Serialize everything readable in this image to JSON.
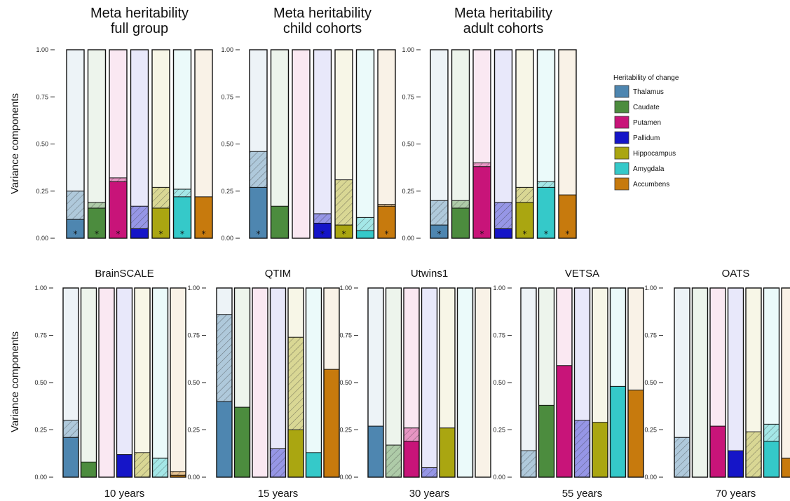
{
  "chart_data": {
    "type": "bar",
    "stacked": true,
    "ylim": [
      0,
      1
    ],
    "yticks": [
      "0.00",
      "0.25",
      "0.50",
      "0.75",
      "1.00"
    ],
    "ylabel": "Variance components",
    "legend": {
      "title": "Heritability of change",
      "placement": "right",
      "items": [
        "Thalamus",
        "Caudate",
        "Putamen",
        "Pallidum",
        "Hippocampus",
        "Amygdala",
        "Accumbens"
      ]
    },
    "colors": {
      "Thalamus": "#4e86b0",
      "Caudate": "#4c8c3e",
      "Putamen": "#c81479",
      "Pallidum": "#1515c8",
      "Hippocampus": "#aaa611",
      "Amygdala": "#35c9c9",
      "Accumbens": "#c77a0d"
    },
    "components": [
      "heritability (solid)",
      "shared environment (hatched)",
      "unique environment (light)"
    ],
    "panels": [
      {
        "title": "Meta heritability\nfull group",
        "xlabel": "",
        "bars": [
          {
            "a": 0.1,
            "c": 0.15,
            "star": true
          },
          {
            "a": 0.16,
            "c": 0.03,
            "star": true
          },
          {
            "a": 0.3,
            "c": 0.02,
            "star": true
          },
          {
            "a": 0.05,
            "c": 0.12,
            "star": false
          },
          {
            "a": 0.16,
            "c": 0.11,
            "star": true
          },
          {
            "a": 0.22,
            "c": 0.04,
            "star": true
          },
          {
            "a": 0.22,
            "c": 0.0,
            "star": true
          }
        ]
      },
      {
        "title": "Meta heritability\nchild cohorts",
        "xlabel": "",
        "bars": [
          {
            "a": 0.27,
            "c": 0.19,
            "star": true
          },
          {
            "a": 0.17,
            "c": 0.0,
            "star": false
          },
          {
            "a": 0.0,
            "c": 0.0,
            "star": false
          },
          {
            "a": 0.08,
            "c": 0.05,
            "star": true
          },
          {
            "a": 0.07,
            "c": 0.24,
            "star": true
          },
          {
            "a": 0.04,
            "c": 0.07,
            "star": false
          },
          {
            "a": 0.17,
            "c": 0.01,
            "star": true
          }
        ]
      },
      {
        "title": "Meta heritability\nadult cohorts",
        "xlabel": "",
        "bars": [
          {
            "a": 0.07,
            "c": 0.13,
            "star": true
          },
          {
            "a": 0.16,
            "c": 0.04,
            "star": false
          },
          {
            "a": 0.38,
            "c": 0.02,
            "star": true
          },
          {
            "a": 0.05,
            "c": 0.14,
            "star": false
          },
          {
            "a": 0.19,
            "c": 0.08,
            "star": true
          },
          {
            "a": 0.27,
            "c": 0.03,
            "star": true
          },
          {
            "a": 0.23,
            "c": 0.0,
            "star": true
          }
        ]
      },
      {
        "title": "BrainSCALE",
        "xlabel": "10 years",
        "bars": [
          {
            "a": 0.21,
            "c": 0.09
          },
          {
            "a": 0.08,
            "c": 0.0
          },
          {
            "a": 0.0,
            "c": 0.0
          },
          {
            "a": 0.12,
            "c": 0.0
          },
          {
            "a": 0.0,
            "c": 0.13
          },
          {
            "a": 0.0,
            "c": 0.1
          },
          {
            "a": 0.01,
            "c": 0.02
          }
        ]
      },
      {
        "title": "QTIM",
        "xlabel": "15 years",
        "bars": [
          {
            "a": 0.4,
            "c": 0.46
          },
          {
            "a": 0.37,
            "c": 0.0
          },
          {
            "a": 0.0,
            "c": 0.0
          },
          {
            "a": 0.0,
            "c": 0.15
          },
          {
            "a": 0.25,
            "c": 0.49
          },
          {
            "a": 0.13,
            "c": 0.0
          },
          {
            "a": 0.57,
            "c": 0.0
          }
        ]
      },
      {
        "title": "Utwins1",
        "xlabel": "30 years",
        "bars": [
          {
            "a": 0.27,
            "c": 0.0
          },
          {
            "a": 0.0,
            "c": 0.17
          },
          {
            "a": 0.19,
            "c": 0.07
          },
          {
            "a": 0.0,
            "c": 0.05
          },
          {
            "a": 0.26,
            "c": 0.0
          },
          {
            "a": 0.0,
            "c": 0.0
          },
          {
            "a": 0.0,
            "c": 0.0
          }
        ]
      },
      {
        "title": "VETSA",
        "xlabel": "55 years",
        "bars": [
          {
            "a": 0.0,
            "c": 0.14
          },
          {
            "a": 0.38,
            "c": 0.0
          },
          {
            "a": 0.59,
            "c": 0.0
          },
          {
            "a": 0.0,
            "c": 0.3
          },
          {
            "a": 0.29,
            "c": 0.0
          },
          {
            "a": 0.48,
            "c": 0.0
          },
          {
            "a": 0.46,
            "c": 0.0
          }
        ]
      },
      {
        "title": "OATS",
        "xlabel": "70 years",
        "bars": [
          {
            "a": 0.0,
            "c": 0.21
          },
          {
            "a": 0.0,
            "c": 0.0
          },
          {
            "a": 0.27,
            "c": 0.0
          },
          {
            "a": 0.14,
            "c": 0.0
          },
          {
            "a": 0.0,
            "c": 0.24
          },
          {
            "a": 0.19,
            "c": 0.09
          },
          {
            "a": 0.1,
            "c": 0.0
          }
        ]
      }
    ]
  }
}
